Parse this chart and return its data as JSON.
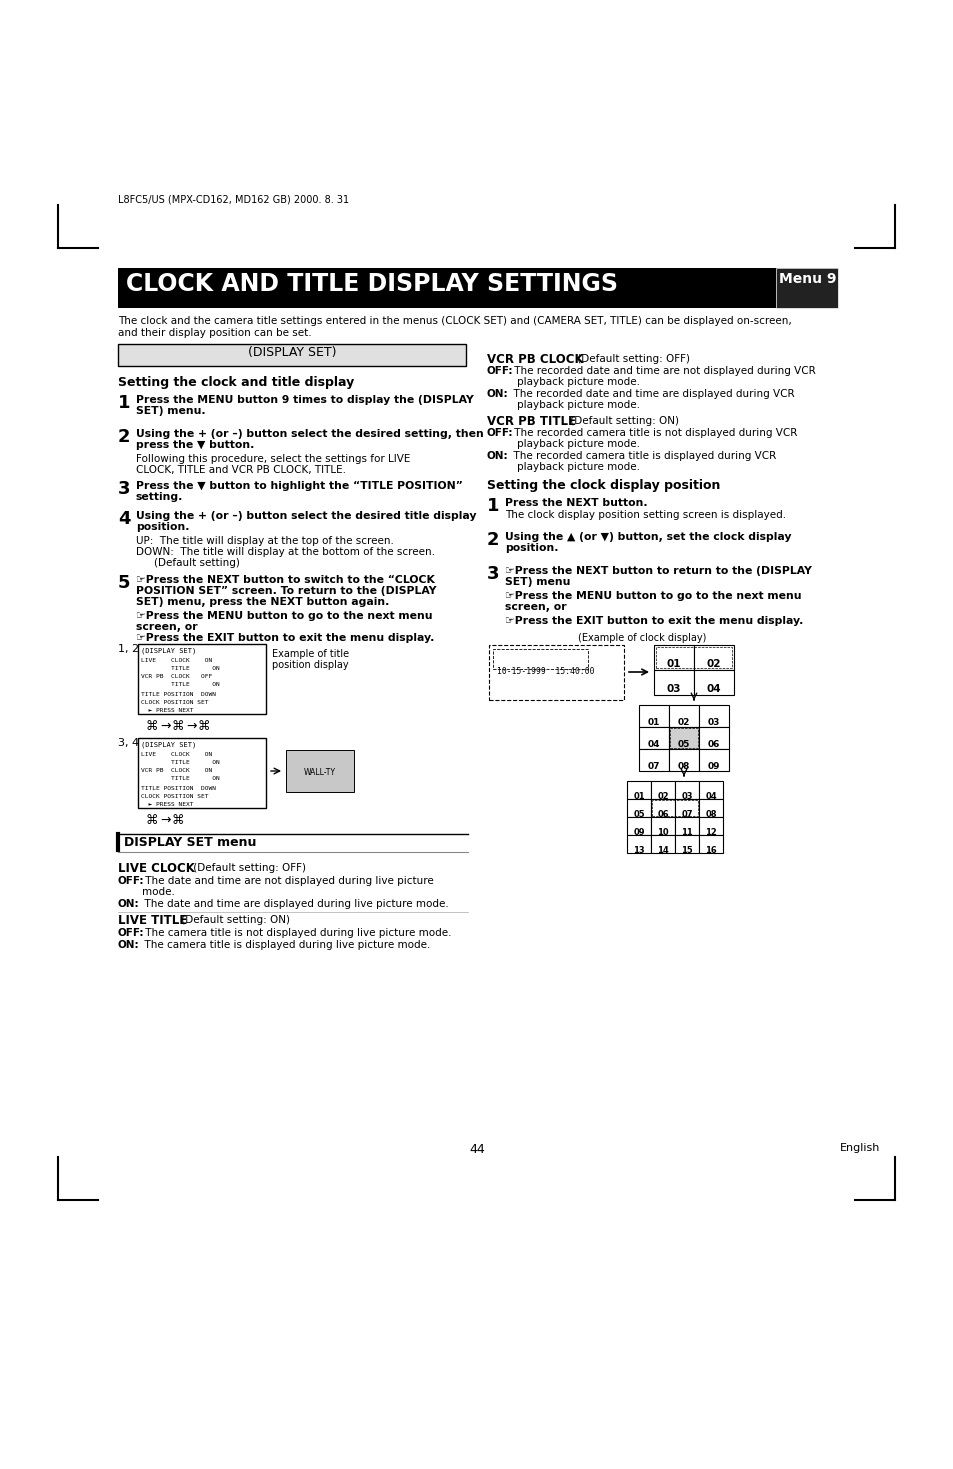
{
  "bg_color": "#ffffff",
  "page_number": "44",
  "page_right_text": "English",
  "doc_ref": "L8FC5/US (MPX-CD162, MD162 GB) 2000. 8. 31",
  "title_main": "CLOCK AND TITLE DISPLAY SETTINGS",
  "title_menu": "Menu 9",
  "subtitle_intro": "The clock and the camera title settings entered in the menus (CLOCK SET) and (CAMERA SET, TITLE) can be displayed on-screen,\nand their display position can be set.",
  "display_set_header": "(DISPLAY SET)",
  "section1_title": "Setting the clock and title display",
  "section2_title": "Setting the clock display position",
  "display_set_menu_header": "DISPLAY SET menu",
  "label_12": "1, 2",
  "label_34": "3, 4",
  "label_example_title": "Example of title\nposition display",
  "clock_example_label": "(Example of clock display)"
}
